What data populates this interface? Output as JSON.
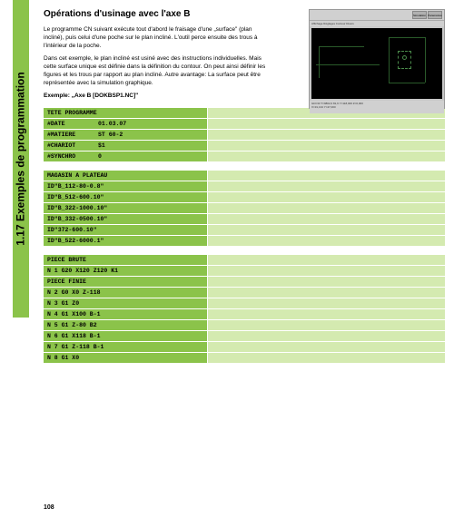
{
  "sidebar": {
    "label": "1.17 Exemples de programmation"
  },
  "title": "Opérations d'usinage avec l'axe B",
  "para1": "Le programme CN suivant exécute tout d'abord le fraisage d'une „surface\" (plan incliné), puis celui d'une poche sur le plan incliné. L'outil perce ensuite des trous à l'intérieur de la poche.",
  "para2": "Dans cet exemple, le plan incliné est usiné avec des instructions individuelles. Mais cette surface unique est définie dans la définition du contour. On peut ainsi définir les figures et les trous par rapport au plan incliné. Autre avantage: La surface peut être représentée avec la simulation graphique.",
  "example_label": "Exemple: „Axe B [DOKBSP1.NC]\"",
  "screenshot": {
    "tabs": [
      "Simulation",
      "Paramètres"
    ],
    "menus": "Affichage  Réglages  Contour  Divers",
    "status_top": "GD=33 T=9802,0 81,9 Y=118,000 Z=0,000",
    "status_bot": "X=31,134 Y=47,000"
  },
  "code": {
    "section1_header": "TETE PROGRAMME",
    "section1": [
      {
        "k": "#DATE",
        "v": "01.03.07"
      },
      {
        "k": "#MATIERE",
        "v": "ST 60-2"
      },
      {
        "k": "#CHARIOT",
        "v": "$1"
      },
      {
        "k": "#SYNCHRO",
        "v": "0"
      }
    ],
    "section2_header": "MAGASIN A PLATEAU",
    "section2": [
      "ID\"B_112-80-0.8\"",
      "ID\"B_512-600.10\"",
      "ID\"B_322-1000.10\"",
      "ID\"B_332-0500.10\"",
      "ID\"372-600.10\"",
      "ID\"B_522-6000.1\""
    ],
    "section3_header": "PIECE BRUTE",
    "section3a": [
      "N   1 G20 X120 Z120 K1"
    ],
    "section3b_header": "PIECE FINIE",
    "section3b": [
      "N   2 G0 X0 Z-118",
      "N   3 G1 Z0",
      "N   4 G1 X100 B-1",
      "N   5 G1 Z-80 B2",
      "N   6 G1 X118 B-1",
      "N   7 G1 Z-118 B-1",
      "N   8 G1 X0"
    ]
  },
  "page_number": "108"
}
